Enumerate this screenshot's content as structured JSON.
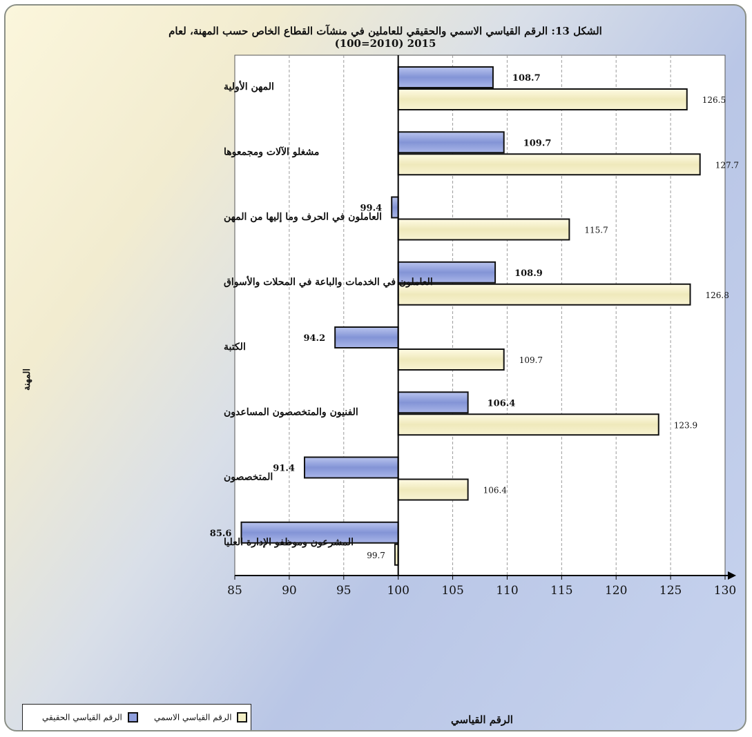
{
  "chart_data": {
    "type": "bar",
    "orientation": "horizontal",
    "title": "الشكل 13: الرقم القياسي الاسمي والحقيقي للعاملين في منشآت القطاع الخاص حسب المهنة، لعام 2015 (2010=100)",
    "xlabel": "الرقم القياسي",
    "ylabel": "المهنة",
    "xlim": [
      85,
      130
    ],
    "baseline": 100,
    "xticks": [
      85,
      90,
      95,
      100,
      105,
      110,
      115,
      120,
      125,
      130
    ],
    "grid": "vertical dashed",
    "legend_position": "bottom-left",
    "categories": [
      "المهن الأولية",
      "مشغلو الآلات ومجمعوها",
      "العاملون في الحرف وما إليها من المهن",
      "العاملون في الخدمات والباعة في المحلات والأسواق",
      "الكتبة",
      "الفنيون والمتخصصون المساعدون",
      "المتخصصون",
      "المشرعون وموظفو الإدارة العليا"
    ],
    "series": [
      {
        "name": "الرقم القياسي الحقيقي",
        "color": "#8f9fdd",
        "values": [
          108.7,
          109.7,
          99.4,
          108.9,
          94.2,
          106.4,
          91.4,
          85.6
        ]
      },
      {
        "name": "الرقم القياسي الاسمي",
        "color": "#f3efc6",
        "values": [
          126.5,
          127.7,
          115.7,
          126.8,
          109.7,
          123.9,
          106.4,
          99.7
        ]
      }
    ]
  }
}
